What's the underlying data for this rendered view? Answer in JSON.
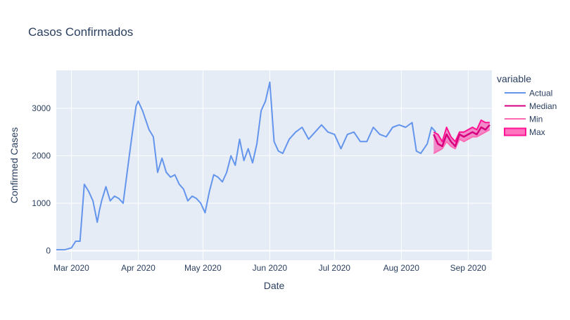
{
  "chart_data": {
    "type": "line",
    "title": "Casos Confirmados",
    "xlabel": "Date",
    "ylabel": "Confirmed Cases",
    "legend_title": "variable",
    "legend_position": "top-right",
    "x_tick_labels": [
      "Mar 2020",
      "Apr 2020",
      "May 2020",
      "Jun 2020",
      "Jul 2020",
      "Aug 2020",
      "Sep 2020"
    ],
    "x_tick_dates": [
      "2020-03-01",
      "2020-04-01",
      "2020-05-01",
      "2020-06-01",
      "2020-07-01",
      "2020-08-01",
      "2020-09-01"
    ],
    "y_ticks": [
      0,
      1000,
      2000,
      3000
    ],
    "y_tick_labels": [
      "0",
      "1000",
      "2000",
      "3000"
    ],
    "xlim": [
      "2020-02-23",
      "2020-09-12"
    ],
    "ylim": [
      -200,
      3800
    ],
    "grid": true,
    "colors": {
      "actual": "#6495ed",
      "median": "#d6007f",
      "min": "#ff69b4",
      "max_band": "#ff1493",
      "plot_bg": "#e5ecf6",
      "grid": "#ffffff"
    },
    "series": [
      {
        "name": "Actual",
        "x": [
          "2020-02-23",
          "2020-02-27",
          "2020-03-01",
          "2020-03-03",
          "2020-03-05",
          "2020-03-07",
          "2020-03-09",
          "2020-03-11",
          "2020-03-13",
          "2020-03-14",
          "2020-03-15",
          "2020-03-17",
          "2020-03-19",
          "2020-03-21",
          "2020-03-23",
          "2020-03-25",
          "2020-03-27",
          "2020-03-29",
          "2020-03-31",
          "2020-04-01",
          "2020-04-03",
          "2020-04-06",
          "2020-04-08",
          "2020-04-10",
          "2020-04-12",
          "2020-04-14",
          "2020-04-16",
          "2020-04-18",
          "2020-04-20",
          "2020-04-22",
          "2020-04-24",
          "2020-04-26",
          "2020-04-28",
          "2020-04-30",
          "2020-05-02",
          "2020-05-04",
          "2020-05-06",
          "2020-05-08",
          "2020-05-10",
          "2020-05-12",
          "2020-05-14",
          "2020-05-16",
          "2020-05-18",
          "2020-05-20",
          "2020-05-22",
          "2020-05-24",
          "2020-05-26",
          "2020-05-28",
          "2020-05-30",
          "2020-06-01",
          "2020-06-03",
          "2020-06-05",
          "2020-06-07",
          "2020-06-10",
          "2020-06-13",
          "2020-06-16",
          "2020-06-19",
          "2020-06-22",
          "2020-06-25",
          "2020-06-28",
          "2020-07-01",
          "2020-07-04",
          "2020-07-07",
          "2020-07-10",
          "2020-07-13",
          "2020-07-16",
          "2020-07-19",
          "2020-07-22",
          "2020-07-25",
          "2020-07-28",
          "2020-07-31",
          "2020-08-03",
          "2020-08-06",
          "2020-08-08",
          "2020-08-10",
          "2020-08-13",
          "2020-08-15",
          "2020-08-17"
        ],
        "y": [
          20,
          20,
          60,
          200,
          200,
          1400,
          1250,
          1050,
          600,
          850,
          1050,
          1350,
          1050,
          1150,
          1100,
          1000,
          1700,
          2400,
          3050,
          3150,
          2950,
          2550,
          2400,
          1650,
          1950,
          1650,
          1550,
          1600,
          1400,
          1300,
          1050,
          1150,
          1100,
          1000,
          800,
          1250,
          1600,
          1550,
          1450,
          1650,
          2000,
          1800,
          2350,
          1900,
          2150,
          1850,
          2250,
          2950,
          3150,
          3550,
          2300,
          2100,
          2050,
          2350,
          2500,
          2600,
          2350,
          2500,
          2650,
          2500,
          2450,
          2150,
          2450,
          2500,
          2300,
          2300,
          2600,
          2450,
          2400,
          2600,
          2650,
          2600,
          2700,
          2100,
          2050,
          2250,
          2600,
          2500
        ]
      },
      {
        "name": "Median",
        "x": [
          "2020-08-16",
          "2020-08-18",
          "2020-08-20",
          "2020-08-22",
          "2020-08-24",
          "2020-08-26",
          "2020-08-28",
          "2020-08-30",
          "2020-09-01",
          "2020-09-03",
          "2020-09-05",
          "2020-09-07",
          "2020-09-09",
          "2020-09-11"
        ],
        "y": [
          2450,
          2250,
          2200,
          2450,
          2300,
          2200,
          2450,
          2400,
          2450,
          2500,
          2450,
          2600,
          2550,
          2650
        ]
      },
      {
        "name": "Min",
        "x": [
          "2020-08-16",
          "2020-08-18",
          "2020-08-20",
          "2020-08-22",
          "2020-08-24",
          "2020-08-26",
          "2020-08-28",
          "2020-08-30",
          "2020-09-01",
          "2020-09-03",
          "2020-09-05",
          "2020-09-07",
          "2020-09-09",
          "2020-09-11"
        ],
        "y": [
          2050,
          2100,
          2150,
          2300,
          2200,
          2150,
          2350,
          2300,
          2350,
          2400,
          2400,
          2450,
          2500,
          2550
        ]
      },
      {
        "name": "Max",
        "x": [
          "2020-08-16",
          "2020-08-18",
          "2020-08-20",
          "2020-08-22",
          "2020-08-24",
          "2020-08-26",
          "2020-08-28",
          "2020-08-30",
          "2020-09-01",
          "2020-09-03",
          "2020-09-05",
          "2020-09-07",
          "2020-09-09",
          "2020-09-11"
        ],
        "y": [
          2500,
          2450,
          2300,
          2600,
          2400,
          2300,
          2500,
          2500,
          2550,
          2600,
          2550,
          2750,
          2700,
          2700
        ]
      }
    ],
    "legend_items": [
      {
        "label": "Actual",
        "kind": "line",
        "color": "#6495ed"
      },
      {
        "label": "Median",
        "kind": "line",
        "color": "#d6007f"
      },
      {
        "label": "Min",
        "kind": "line",
        "color": "#ff69b4"
      },
      {
        "label": "Max",
        "kind": "band",
        "color": "#ff1493"
      }
    ]
  }
}
